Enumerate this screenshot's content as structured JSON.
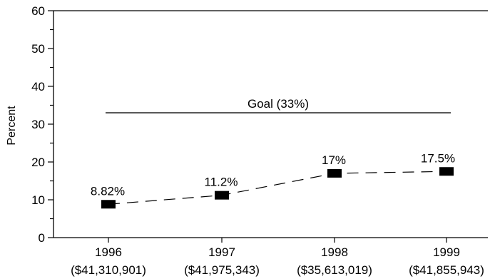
{
  "chart_data": {
    "type": "line",
    "title": "",
    "xlabel": "",
    "ylabel": "Percent",
    "ylim": [
      0,
      60
    ],
    "y_ticks": [
      "0",
      "10",
      "20",
      "30",
      "40",
      "50",
      "60"
    ],
    "grid": false,
    "categories": [
      {
        "year": "1996",
        "amount": "($41,310,901)"
      },
      {
        "year": "1997",
        "amount": "($41,975,343)"
      },
      {
        "year": "1998",
        "amount": "($35,613,019)"
      },
      {
        "year": "1999",
        "amount": "($41,855,943)"
      }
    ],
    "series": [
      {
        "values": [
          8.82,
          11.2,
          17,
          17.5
        ],
        "labels": [
          "8.82%",
          "11.2%",
          "17%",
          "17.5%"
        ],
        "line_style": "dashed",
        "marker": "rectangle",
        "color": "#000000"
      }
    ],
    "goal": {
      "value": 33,
      "label": "Goal (33%)",
      "x_start": "1996",
      "x_end": "1999"
    }
  }
}
